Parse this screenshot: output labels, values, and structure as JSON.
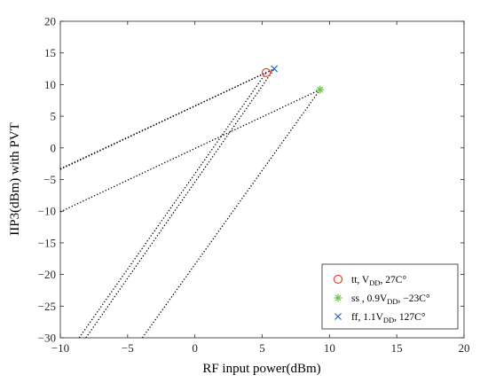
{
  "chart_data": {
    "type": "line",
    "title": "",
    "xlabel": "RF input power(dBm)",
    "ylabel": "IIP3(dBm) with PVT",
    "xlim": [
      -10,
      20
    ],
    "ylim": [
      -30,
      20
    ],
    "xticks": [
      -10,
      -5,
      0,
      5,
      10,
      15,
      20
    ],
    "yticks": [
      -30,
      -25,
      -20,
      -15,
      -10,
      -5,
      0,
      5,
      10,
      15,
      20
    ],
    "x_tick_labels": [
      "−10",
      "−5",
      "0",
      "5",
      "10",
      "15",
      "20"
    ],
    "y_tick_labels": [
      "−30",
      "−25",
      "−20",
      "−15",
      "−10",
      "−5",
      "0",
      "5",
      "10",
      "15",
      "20"
    ],
    "grid": false,
    "legend_position": "bottom-right",
    "line_style": "dotted",
    "line_color": "#000000",
    "lines": [
      {
        "x": [
          -10,
          5.3
        ],
        "y": [
          -3.3,
          11.9
        ]
      },
      {
        "x": [
          -10,
          5.9
        ],
        "y": [
          -3.4,
          12.5
        ]
      },
      {
        "x": [
          -8.6,
          5.3
        ],
        "y": [
          -30,
          11.9
        ]
      },
      {
        "x": [
          -8.1,
          5.9
        ],
        "y": [
          -30,
          12.5
        ]
      },
      {
        "x": [
          -10,
          9.3
        ],
        "y": [
          -10.1,
          9.2
        ]
      },
      {
        "x": [
          -3.9,
          9.3
        ],
        "y": [
          -30,
          9.2
        ]
      }
    ],
    "series": [
      {
        "label": {
          "pre": "tt, V",
          "sub": "DD",
          "post": ", 27C°"
        },
        "marker": "circle",
        "color": "#e8412e",
        "x": [
          5.3
        ],
        "y": [
          11.9
        ]
      },
      {
        "label": {
          "pre": "ss , 0.9V",
          "sub": "DD",
          "post": ", −23C°"
        },
        "marker": "asterisk",
        "color": "#6cc24a",
        "x": [
          9.3
        ],
        "y": [
          9.2
        ]
      },
      {
        "label": {
          "pre": "ff, 1.1V",
          "sub": "DD",
          "post": ", 127C°"
        },
        "marker": "cross",
        "color": "#2a63b8",
        "x": [
          5.9
        ],
        "y": [
          12.5
        ]
      }
    ]
  }
}
